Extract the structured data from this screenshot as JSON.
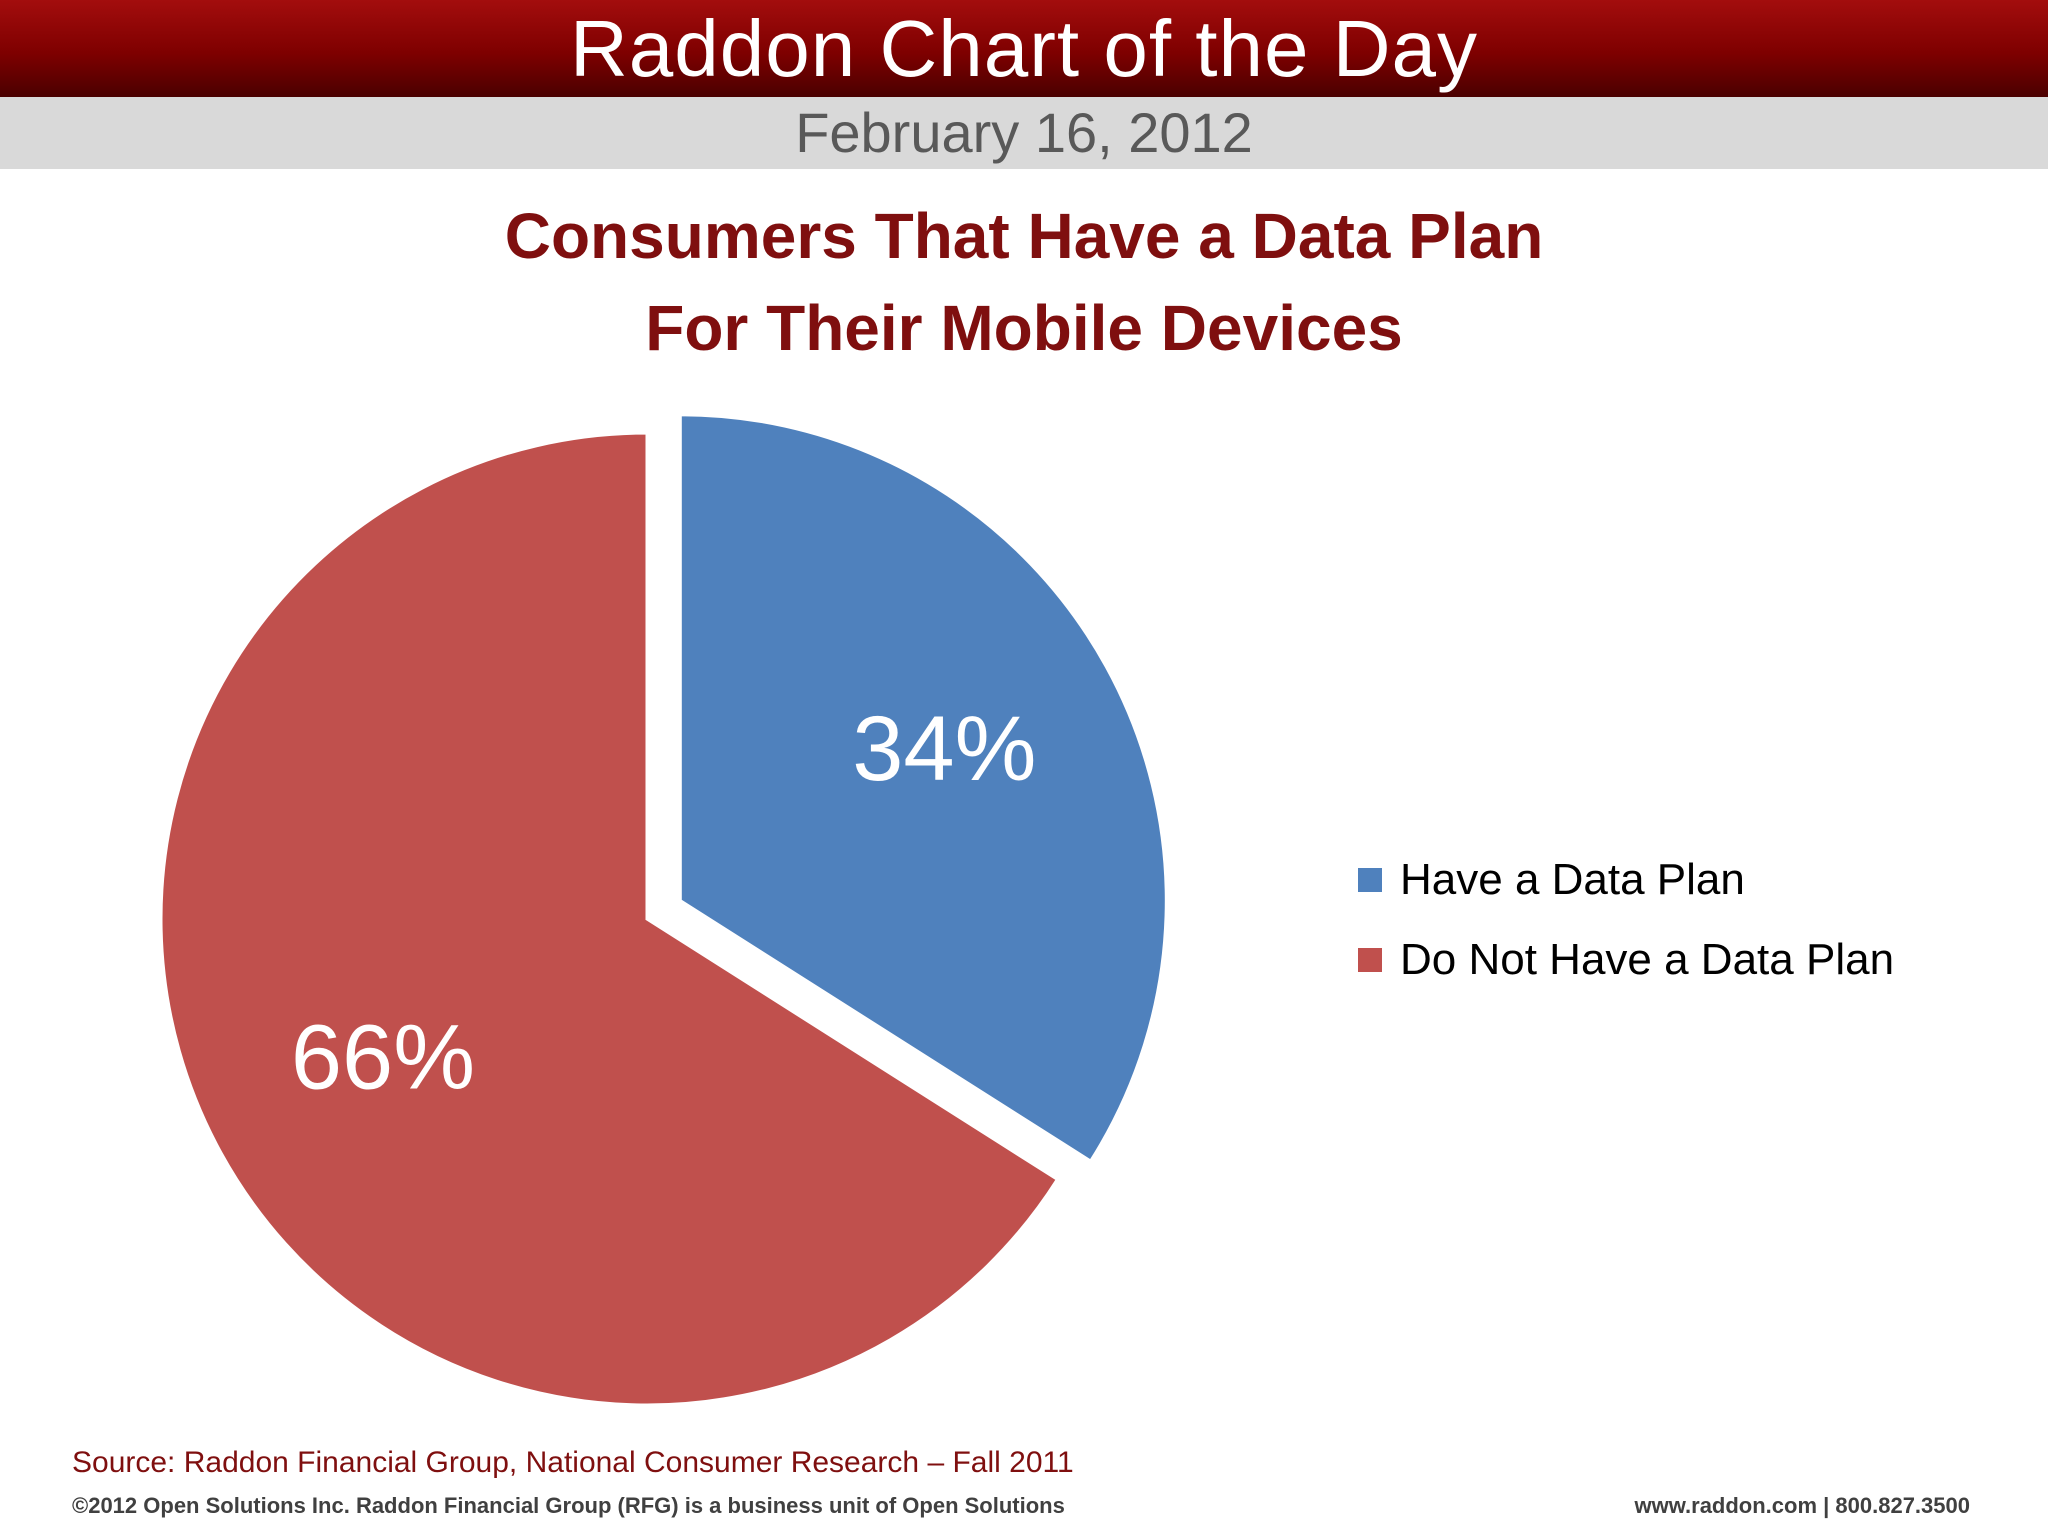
{
  "header": {
    "banner_title": "Raddon Chart of the Day",
    "date": "February 16, 2012"
  },
  "chart_data": {
    "type": "pie",
    "title_lines": [
      "Consumers That Have a Data Plan",
      "For Their Mobile Devices"
    ],
    "slices": [
      {
        "name": "Have a Data Plan",
        "value": 34,
        "label": "34%",
        "color": "#4f81bd",
        "exploded": true
      },
      {
        "name": "Do Not Have a Data Plan",
        "value": 66,
        "label": "66%",
        "color": "#c0504d",
        "exploded": false
      }
    ],
    "legend_position": "right"
  },
  "footer": {
    "source": "Source: Raddon Financial Group, National Consumer Research – Fall 2011",
    "copyright": "©2012 Open Solutions Inc.  Raddon Financial Group (RFG) is a business unit of Open Solutions",
    "contact": "www.raddon.com  |  800.827.3500"
  }
}
